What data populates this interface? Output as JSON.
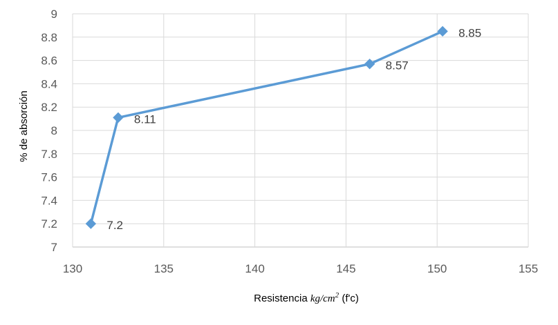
{
  "chart_data": {
    "type": "line",
    "title": "",
    "xlabel": "Resistencia kg/cm2 (f'c)",
    "xlabel_parts": {
      "prefix": "Resistencia ",
      "math": "kg/cm",
      "sup": "2",
      "suffix": " (f'c)"
    },
    "ylabel": "% de absorción",
    "xlim": [
      130,
      155
    ],
    "ylim": [
      7,
      9
    ],
    "x_ticks": [
      130,
      135,
      140,
      145,
      150,
      155
    ],
    "y_ticks": [
      7,
      7.2,
      7.4,
      7.6,
      7.8,
      8,
      8.2,
      8.4,
      8.6,
      8.8,
      9
    ],
    "x_tick_labels": [
      "130",
      "135",
      "140",
      "145",
      "150",
      "155"
    ],
    "y_tick_labels": [
      "7",
      "7.2",
      "7.4",
      "7.6",
      "7.8",
      "8",
      "8.2",
      "8.4",
      "8.6",
      "8.8",
      "9"
    ],
    "grid": true,
    "marker": "diamond",
    "series": [
      {
        "color": "#5b9bd5",
        "points": [
          {
            "x": 131,
            "y": 7.2,
            "label": "7.2"
          },
          {
            "x": 132.5,
            "y": 8.11,
            "label": "8.11"
          },
          {
            "x": 146.3,
            "y": 8.57,
            "label": "8.57"
          },
          {
            "x": 150.3,
            "y": 8.85,
            "label": "8.85"
          }
        ]
      }
    ]
  }
}
